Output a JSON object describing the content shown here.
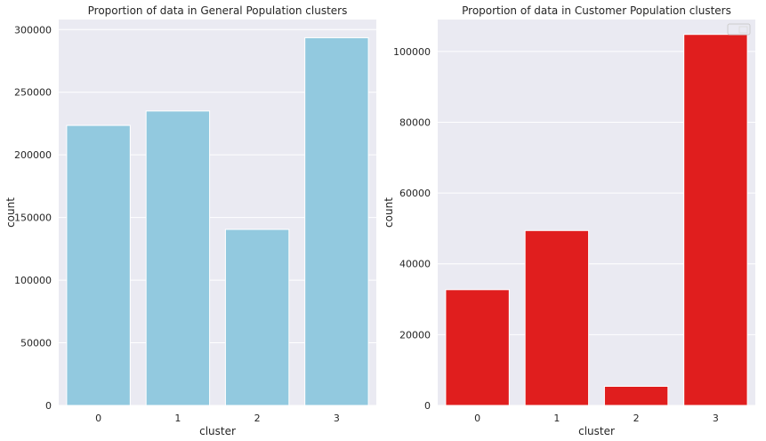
{
  "chart_data": [
    {
      "type": "bar",
      "title": "Proportion of data in General Population clusters",
      "xlabel": "cluster",
      "ylabel": "count",
      "categories": [
        "0",
        "1",
        "2",
        "3"
      ],
      "values": [
        223500,
        235000,
        140500,
        293500
      ],
      "yticks": [
        "0",
        "50000",
        "100000",
        "150000",
        "200000",
        "250000",
        "300000"
      ],
      "ytick_values": [
        0,
        50000,
        100000,
        150000,
        200000,
        250000,
        300000
      ],
      "ylim": [
        0,
        308000
      ],
      "color": "#92c9df",
      "grid": true,
      "legend": false
    },
    {
      "type": "bar",
      "title": "Proportion of data in Customer Population clusters",
      "xlabel": "cluster",
      "ylabel": "count",
      "categories": [
        "0",
        "1",
        "2",
        "3"
      ],
      "values": [
        32700,
        49400,
        5400,
        104800
      ],
      "yticks": [
        "0",
        "20000",
        "40000",
        "60000",
        "80000",
        "100000"
      ],
      "ytick_values": [
        0,
        20000,
        40000,
        60000,
        80000,
        100000
      ],
      "ylim": [
        0,
        109000
      ],
      "color": "#e01e1e",
      "grid": true,
      "legend": "top-right"
    }
  ]
}
